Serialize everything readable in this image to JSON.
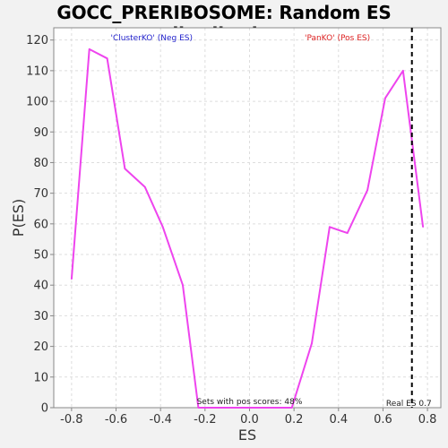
{
  "chart_data": {
    "type": "line",
    "title": "GOCC_PRERIBOSOME: Random ES distribution",
    "xlabel": "ES",
    "ylabel": "P(ES)",
    "xlim": [
      -0.88,
      0.86
    ],
    "ylim": [
      0,
      124
    ],
    "xticks": [
      -0.8,
      -0.6,
      -0.4,
      -0.2,
      0.0,
      0.2,
      0.4,
      0.6,
      0.8
    ],
    "xtick_labels": [
      "-0.8",
      "-0.6",
      "-0.4",
      "-0.2",
      "0.0",
      "0.2",
      "0.4",
      "0.6",
      "0.8"
    ],
    "yticks": [
      0,
      10,
      20,
      30,
      40,
      50,
      60,
      70,
      80,
      90,
      100,
      110,
      120
    ],
    "grid": true,
    "series": [
      {
        "color": "#ee44ee",
        "x": [
          -0.8,
          -0.72,
          -0.64,
          -0.56,
          -0.47,
          -0.39,
          -0.3,
          -0.23,
          -0.14,
          -0.06,
          0.03,
          0.11,
          0.19,
          0.28,
          0.36,
          0.44,
          0.53,
          0.61,
          0.69,
          0.78
        ],
        "y": [
          42,
          117,
          114,
          78,
          72,
          59,
          40,
          0,
          0,
          0,
          0,
          0,
          0,
          21,
          59,
          57,
          71,
          101,
          110,
          59
        ]
      }
    ],
    "real_es": {
      "value": 0.73,
      "label": "Real ES 0.7",
      "style": "dashed",
      "color": "#000000"
    },
    "annotations": {
      "neg_label": "'ClusterKO' (Neg ES)",
      "neg_color": "#2222cc",
      "pos_label": "'PanKO' (Pos ES)",
      "pos_color": "#dd2222",
      "pos_scores": "Sets with pos scores: 48%"
    }
  }
}
